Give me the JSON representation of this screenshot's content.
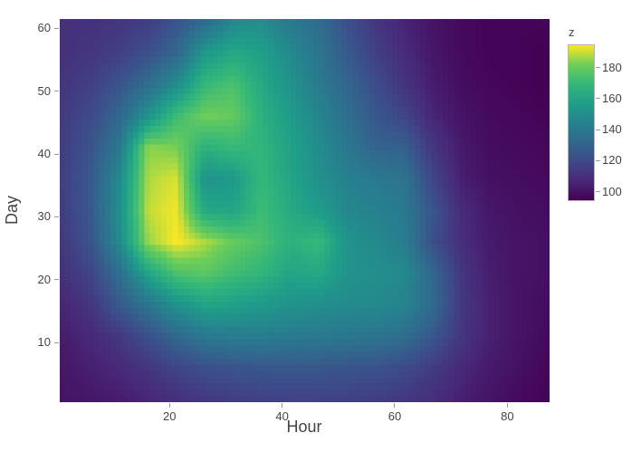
{
  "figure": {
    "background": "#ffffff",
    "text_color": "#444444",
    "tick_mark_color": "#999999",
    "colorbar_outline_color": "#b3b3b3"
  },
  "chart_data": {
    "type": "heatmap",
    "title": "",
    "xlabel": "Hour",
    "ylabel": "Day",
    "colorbar_title": "z",
    "x_range": [
      0.5,
      87.5
    ],
    "y_range": [
      0.5,
      61.5
    ],
    "x_ticks": [
      20,
      40,
      60,
      80
    ],
    "y_ticks": [
      10,
      20,
      30,
      40,
      50,
      60
    ],
    "colorbar_ticks": [
      100,
      120,
      140,
      160,
      180
    ],
    "zmin": 94,
    "zmax": 195,
    "grid_hours": [
      2,
      7,
      12,
      17,
      22,
      27,
      32,
      37,
      42,
      47,
      52,
      57,
      62,
      67,
      72,
      77,
      82,
      87
    ],
    "grid_days": [
      61,
      56,
      51,
      46,
      41,
      36,
      31,
      26,
      21,
      16,
      11,
      6,
      1
    ],
    "z": [
      [
        110,
        110,
        112,
        115,
        124,
        134,
        148,
        150,
        140,
        134,
        122,
        112,
        105,
        100,
        97,
        95,
        95,
        95
      ],
      [
        110,
        112,
        116,
        122,
        132,
        155,
        162,
        158,
        148,
        138,
        126,
        116,
        108,
        101,
        97,
        95,
        95,
        94
      ],
      [
        112,
        116,
        124,
        135,
        150,
        170,
        175,
        162,
        152,
        141,
        131,
        121,
        111,
        103,
        98,
        96,
        95,
        94
      ],
      [
        114,
        120,
        132,
        152,
        172,
        182,
        180,
        166,
        156,
        146,
        135,
        125,
        118,
        106,
        100,
        97,
        96,
        95
      ],
      [
        115,
        124,
        140,
        185,
        183,
        166,
        170,
        168,
        159,
        149,
        139,
        130,
        129,
        112,
        102,
        98,
        97,
        96
      ],
      [
        116,
        126,
        148,
        188,
        192,
        152,
        155,
        170,
        160,
        151,
        144,
        140,
        138,
        118,
        104,
        99,
        98,
        97
      ],
      [
        115,
        126,
        150,
        190,
        194,
        162,
        160,
        172,
        163,
        156,
        147,
        144,
        140,
        124,
        108,
        101,
        99,
        98
      ],
      [
        113,
        124,
        148,
        186,
        195,
        188,
        180,
        175,
        166,
        170,
        152,
        148,
        142,
        122,
        109,
        102,
        100,
        99
      ],
      [
        110,
        118,
        135,
        160,
        175,
        178,
        172,
        168,
        160,
        162,
        152,
        150,
        148,
        132,
        112,
        103,
        100,
        99
      ],
      [
        106,
        112,
        126,
        138,
        152,
        160,
        158,
        155,
        152,
        150,
        148,
        148,
        145,
        133,
        113,
        104,
        100,
        98
      ],
      [
        103,
        107,
        113,
        122,
        132,
        140,
        142,
        142,
        141,
        140,
        139,
        138,
        135,
        125,
        112,
        104,
        100,
        97
      ],
      [
        101,
        104,
        107,
        112,
        118,
        122,
        124,
        125,
        125,
        125,
        124,
        123,
        120,
        114,
        107,
        102,
        99,
        96
      ],
      [
        100,
        101,
        103,
        106,
        110,
        113,
        115,
        116,
        117,
        117,
        116,
        115,
        113,
        109,
        104,
        100,
        97,
        95
      ]
    ],
    "colorscale": [
      [
        0.0,
        "#440154"
      ],
      [
        0.125,
        "#482878"
      ],
      [
        0.25,
        "#3e4989"
      ],
      [
        0.375,
        "#31688e"
      ],
      [
        0.5,
        "#26828e"
      ],
      [
        0.625,
        "#1f9e89"
      ],
      [
        0.75,
        "#35b779"
      ],
      [
        0.875,
        "#6ece58"
      ],
      [
        1.0,
        "#fde725"
      ]
    ],
    "legend_position": "right",
    "grid": false
  }
}
